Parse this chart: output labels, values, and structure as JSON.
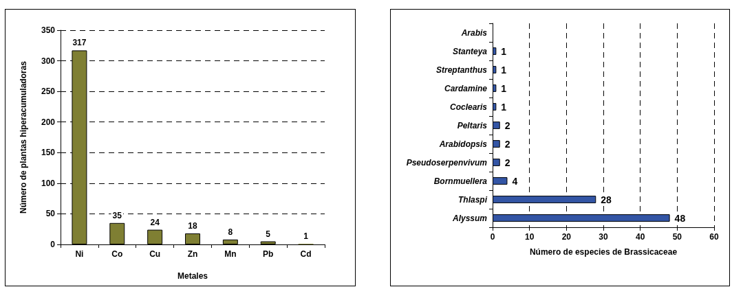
{
  "chart_data": [
    {
      "type": "bar",
      "xlabel": "Metales",
      "ylabel": "Número de plantas hiperacumuladoras",
      "categories": [
        "Ni",
        "Co",
        "Cu",
        "Zn",
        "Mn",
        "Pb",
        "Cd"
      ],
      "values": [
        317,
        35,
        24,
        18,
        8,
        5,
        1
      ],
      "color": "#7f7f33",
      "ylim": [
        0,
        350
      ],
      "yticks": [
        0,
        50,
        100,
        150,
        200,
        250,
        300,
        350
      ],
      "grid": "y",
      "data_labels": true
    },
    {
      "type": "bar",
      "orientation": "horizontal",
      "xlabel": "Número de especies de Brassicaceae",
      "categories": [
        "Arabis",
        "Stanteya",
        "Streptanthus",
        "Cardamine",
        "Coclearis",
        "Peltaris",
        "Arabidopsis",
        "Pseudoserpenvivum",
        "Bornmuellera",
        "Thlaspi",
        "Alyssum"
      ],
      "values": [
        null,
        1,
        1,
        1,
        1,
        2,
        2,
        2,
        4,
        28,
        48
      ],
      "color": "#3355a5",
      "xlim": [
        0,
        60
      ],
      "xticks": [
        0,
        10,
        20,
        30,
        40,
        50,
        60
      ],
      "grid": "x",
      "data_labels": true
    }
  ]
}
